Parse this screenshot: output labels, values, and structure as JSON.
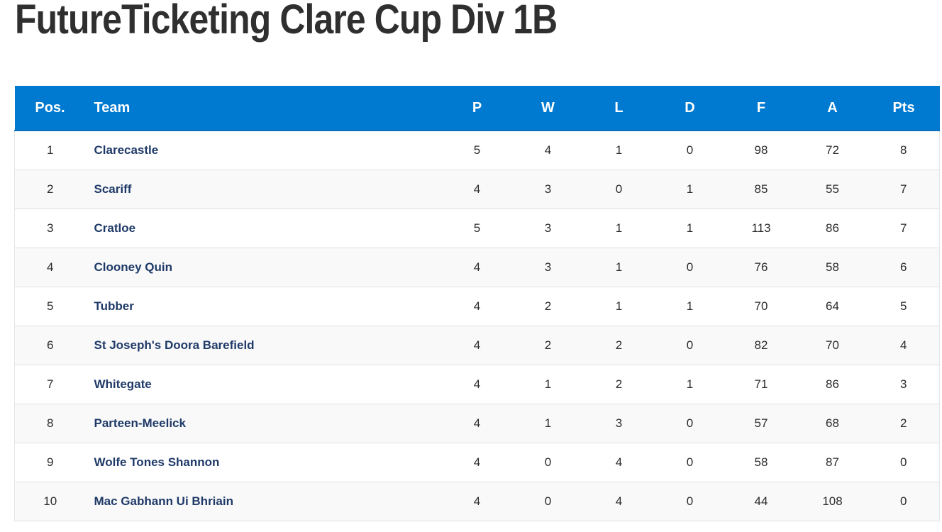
{
  "page": {
    "title": "FutureTicketing Clare Cup Div 1B"
  },
  "table": {
    "headers": {
      "pos": "Pos.",
      "team": "Team",
      "p": "P",
      "w": "W",
      "l": "L",
      "d": "D",
      "f": "F",
      "a": "A",
      "pts": "Pts"
    },
    "header_color": "#0079d0",
    "team_link_color": "#1f3a68",
    "rows": [
      {
        "pos": "1",
        "team": "Clarecastle",
        "p": "5",
        "w": "4",
        "l": "1",
        "d": "0",
        "f": "98",
        "a": "72",
        "pts": "8"
      },
      {
        "pos": "2",
        "team": "Scariff",
        "p": "4",
        "w": "3",
        "l": "0",
        "d": "1",
        "f": "85",
        "a": "55",
        "pts": "7"
      },
      {
        "pos": "3",
        "team": "Cratloe",
        "p": "5",
        "w": "3",
        "l": "1",
        "d": "1",
        "f": "113",
        "a": "86",
        "pts": "7"
      },
      {
        "pos": "4",
        "team": "Clooney Quin",
        "p": "4",
        "w": "3",
        "l": "1",
        "d": "0",
        "f": "76",
        "a": "58",
        "pts": "6"
      },
      {
        "pos": "5",
        "team": "Tubber",
        "p": "4",
        "w": "2",
        "l": "1",
        "d": "1",
        "f": "70",
        "a": "64",
        "pts": "5"
      },
      {
        "pos": "6",
        "team": "St Joseph's Doora Barefield",
        "p": "4",
        "w": "2",
        "l": "2",
        "d": "0",
        "f": "82",
        "a": "70",
        "pts": "4"
      },
      {
        "pos": "7",
        "team": "Whitegate",
        "p": "4",
        "w": "1",
        "l": "2",
        "d": "1",
        "f": "71",
        "a": "86",
        "pts": "3"
      },
      {
        "pos": "8",
        "team": "Parteen-Meelick",
        "p": "4",
        "w": "1",
        "l": "3",
        "d": "0",
        "f": "57",
        "a": "68",
        "pts": "2"
      },
      {
        "pos": "9",
        "team": "Wolfe Tones Shannon",
        "p": "4",
        "w": "0",
        "l": "4",
        "d": "0",
        "f": "58",
        "a": "87",
        "pts": "0"
      },
      {
        "pos": "10",
        "team": "Mac Gabhann Ui Bhriain",
        "p": "4",
        "w": "0",
        "l": "4",
        "d": "0",
        "f": "44",
        "a": "108",
        "pts": "0"
      }
    ]
  }
}
